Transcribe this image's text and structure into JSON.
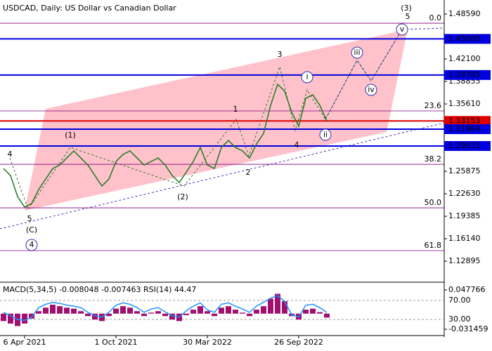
{
  "chart_data": {
    "type": "line",
    "title": "USDCAD, Daily:  US Dollar vs Canadian Dollar",
    "color": "#1f7a1f",
    "categories": [
      null,
      null,
      null,
      "6 Apr 2021",
      null,
      null,
      null,
      null,
      null,
      null,
      null,
      null,
      null,
      null,
      null,
      null,
      "1 Oct 2021",
      null,
      null,
      null,
      null,
      null,
      null,
      null,
      null,
      null,
      null,
      null,
      null,
      "30 Mar 2022",
      null,
      null,
      null,
      null,
      null,
      null,
      null,
      null,
      null,
      null,
      null,
      null,
      "26 Sep 2022",
      null,
      null,
      null,
      null
    ],
    "values": [
      1.2628,
      1.2527,
      1.2223,
      1.2071,
      1.2121,
      1.2324,
      1.2476,
      1.2628,
      1.2679,
      1.278,
      1.2882,
      1.278,
      1.2679,
      1.2527,
      1.2375,
      1.2476,
      1.273,
      1.2831,
      1.2882,
      1.278,
      1.2679,
      1.273,
      1.278,
      1.2679,
      1.2527,
      1.2425,
      1.2577,
      1.273,
      1.2932,
      1.2679,
      1.2628,
      1.2932,
      1.3034,
      1.2932,
      1.2882,
      1.278,
      1.2983,
      1.3135,
      1.3541,
      1.3845,
      1.3744,
      1.344,
      1.3237,
      1.3642,
      1.3693,
      1.3541,
      1.3315
    ],
    "ylim": [
      1.0986,
      1.5062
    ],
    "yticks": [
      {
        "value": 1.4859,
        "label": "1.48590"
      },
      {
        "value": 1.421,
        "label": "1.42100"
      },
      1.38855,
      {
        "value": 1.3561,
        "label": "1.35610"
      },
      1.25875,
      {
        "value": 1.2263,
        "label": "1.22630"
      },
      1.19385,
      {
        "value": 1.1614,
        "label": "1.16140"
      },
      1.12895
    ],
    "levels": [
      {
        "value": 1.45,
        "label": "1.45000",
        "color": "#0000e0"
      },
      {
        "value": 1.39785,
        "label": "1.39785",
        "color": "#0000e0"
      },
      {
        "value": 1.33153,
        "label": "1.33153",
        "color": "#e00000"
      },
      {
        "value": 1.31964,
        "label": "1.31964",
        "color": "#0000e0"
      },
      {
        "value": 1.29531,
        "label": "1.29531",
        "color": "#0000e0"
      }
    ],
    "fibonacci": [
      {
        "value": 1.4727,
        "label": "0.0"
      },
      {
        "value": 1.346,
        "label": "23.6"
      },
      {
        "value": 1.2689,
        "label": "38.2"
      },
      {
        "value": 1.206,
        "label": "50.0"
      },
      {
        "value": 1.1442,
        "label": "61.8"
      }
    ],
    "wave_labels": [
      {
        "text": "4",
        "color": "#b03030"
      },
      {
        "text": "5",
        "color": "#b03030"
      },
      {
        "text": "(C)",
        "color": "#2a9a2a"
      },
      {
        "text": "4",
        "color": "#3030b0",
        "circled": true
      },
      {
        "text": "(1)",
        "color": "#2a9a2a"
      },
      {
        "text": "(2)",
        "color": "#2a9a2a"
      },
      {
        "text": "1",
        "color": "#b03030"
      },
      {
        "text": "2",
        "color": "#b03030"
      },
      {
        "text": "3",
        "color": "#b03030"
      },
      {
        "text": "4",
        "color": "#b03030"
      },
      {
        "text": "i",
        "color": "#3030b0",
        "circled": true
      },
      {
        "text": "ii",
        "color": "#3030b0",
        "circled": true
      },
      {
        "text": "iii",
        "color": "#3030b0",
        "circled": true
      },
      {
        "text": "iv",
        "color": "#3030b0",
        "circled": true
      },
      {
        "text": "v",
        "color": "#3030b0",
        "circled": true
      },
      {
        "text": "5",
        "color": "#b03030"
      },
      {
        "text": "(3)",
        "color": "#2a9a2a"
      }
    ],
    "indicator": {
      "header": "MACD(5,34,5) -0.008048 -0.007463 RSI(14) 44.47",
      "macd_lim": [
        -0.04136,
        0.0605
      ],
      "macd_ticks": [
        0.047766,
        -0.031459
      ],
      "rsi_lim": [
        -1.1,
        105.6
      ],
      "rsi_ticks": [
        {
          "value": 70,
          "label": "70.00"
        },
        {
          "value": 30,
          "label": "30.00"
        }
      ],
      "hist_color": "#a0106e",
      "rsi_color": "#1e90ff",
      "histogram": [
        -0.015,
        -0.02,
        -0.025,
        -0.02,
        -0.01,
        0.005,
        0.012,
        0.018,
        0.015,
        0.012,
        0.01,
        0.005,
        -0.005,
        -0.012,
        -0.015,
        -0.005,
        0.01,
        0.015,
        0.012,
        0.005,
        -0.005,
        0.002,
        0.005,
        -0.005,
        -0.012,
        -0.015,
        -0.003,
        0.008,
        0.015,
        0.005,
        -0.005,
        0.012,
        0.015,
        0.008,
        0.002,
        -0.005,
        0.008,
        0.015,
        0.03,
        0.04,
        0.025,
        -0.005,
        -0.012,
        0.008,
        0.01,
        0.003,
        -0.008048
      ],
      "rsi": [
        45,
        38,
        30,
        28,
        35,
        55,
        62,
        66,
        64,
        60,
        58,
        55,
        45,
        38,
        35,
        45,
        60,
        65,
        62,
        55,
        45,
        52,
        55,
        46,
        38,
        35,
        48,
        58,
        65,
        50,
        45,
        62,
        65,
        58,
        52,
        45,
        58,
        66,
        75,
        80,
        68,
        40,
        35,
        60,
        62,
        55,
        44.47
      ]
    }
  }
}
